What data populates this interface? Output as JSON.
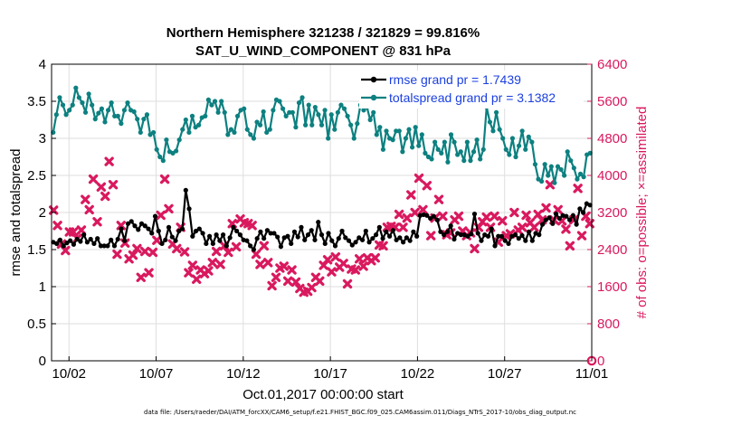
{
  "chart_data": {
    "type": "line",
    "title_line1": "Northern Hemisphere 321238 / 321829 = 99.816%",
    "title_line2": "SAT_U_WIND_COMPONENT @ 831 hPa",
    "xlabel": "Oct.01,2017 00:00:00 start",
    "ylabel_left": "rmse and totalspread",
    "ylabel_right": "# of obs: o=possible; ×=assimilated",
    "footer": "data file: /Users/raeder/DAI/ATM_forcXX/CAM6_setup/f.e21.FHIST_BGC.f09_025.CAM6assim.011/Diags_NTrS_2017-10/obs_diag_output.nc",
    "x_range": [
      0,
      31
    ],
    "x_ticks": [
      {
        "v": 1,
        "label": "10/02"
      },
      {
        "v": 6,
        "label": "10/07"
      },
      {
        "v": 11,
        "label": "10/12"
      },
      {
        "v": 16,
        "label": "10/17"
      },
      {
        "v": 21,
        "label": "10/22"
      },
      {
        "v": 26,
        "label": "10/27"
      },
      {
        "v": 31,
        "label": "11/01"
      }
    ],
    "ylim_left": [
      0,
      4
    ],
    "yticks_left": [
      "0",
      "0.5",
      "1",
      "1.5",
      "2",
      "2.5",
      "3",
      "3.5",
      "4"
    ],
    "ylim_right": [
      0,
      6400
    ],
    "yticks_right": [
      "0",
      "800",
      "1600",
      "2400",
      "3200",
      "4000",
      "4800",
      "5600",
      "6400"
    ],
    "grid": true,
    "legend_position": "top-right",
    "colors": {
      "rmse": "#000000",
      "spread": "#0d8080",
      "obs": "#d9195e",
      "legend_text": "#1a3fe0",
      "right_axis": "#d9195e",
      "grid": "#dedede"
    },
    "series": [
      {
        "name": "rmse grand pr = 1.7439",
        "axis": "left",
        "values": [
          1.6,
          1.58,
          1.63,
          1.55,
          1.59,
          1.62,
          1.57,
          1.64,
          1.61,
          1.7,
          1.6,
          1.64,
          1.58,
          1.65,
          1.55,
          1.55,
          1.55,
          1.63,
          1.55,
          1.64,
          1.78,
          1.62,
          1.85,
          1.88,
          1.82,
          1.77,
          1.85,
          1.82,
          1.78,
          1.72,
          1.95,
          1.75,
          1.58,
          1.63,
          1.8,
          1.67,
          1.62,
          1.75,
          1.78,
          2.3,
          2.05,
          1.68,
          1.75,
          1.78,
          1.72,
          1.58,
          1.68,
          1.58,
          1.7,
          1.62,
          1.7,
          1.55,
          1.66,
          1.8,
          1.75,
          1.7,
          1.63,
          1.62,
          1.55,
          1.5,
          1.65,
          1.74,
          1.65,
          1.76,
          1.72,
          1.72,
          1.67,
          1.54,
          1.66,
          1.68,
          1.58,
          1.74,
          1.67,
          1.8,
          1.63,
          1.7,
          1.76,
          1.63,
          1.87,
          1.7,
          1.58,
          1.72,
          1.62,
          1.55,
          1.65,
          1.75,
          1.66,
          1.62,
          1.56,
          1.6,
          1.66,
          1.63,
          1.75,
          1.6,
          1.65,
          1.7,
          1.8,
          1.65,
          1.74,
          1.68,
          1.76,
          1.63,
          1.66,
          1.6,
          1.66,
          1.62,
          1.74,
          1.68,
          1.96,
          1.97,
          1.96,
          1.92,
          1.95,
          1.9,
          1.74,
          1.7,
          1.74,
          1.82,
          1.64,
          1.72,
          1.7,
          1.7,
          1.68,
          1.71,
          1.98,
          1.72,
          1.62,
          1.7,
          1.68,
          1.78,
          1.55,
          1.68,
          1.68,
          1.62,
          1.58,
          1.68,
          1.7,
          1.65,
          1.69,
          1.62,
          1.74,
          1.62,
          1.72,
          1.7,
          1.84,
          1.9,
          1.93,
          1.85,
          1.98,
          1.92,
          1.96,
          1.95,
          1.9,
          1.96,
          1.84,
          2.05,
          2.0,
          2.12,
          2.1
        ]
      },
      {
        "name": "totalspread grand pr = 3.1382",
        "axis": "left",
        "values": [
          3.08,
          3.32,
          3.55,
          3.45,
          3.32,
          3.38,
          3.45,
          3.68,
          3.55,
          3.48,
          3.35,
          3.6,
          3.45,
          3.26,
          3.34,
          3.4,
          3.22,
          3.38,
          3.48,
          3.3,
          3.3,
          3.2,
          3.38,
          3.48,
          3.38,
          3.36,
          3.26,
          3.08,
          3.26,
          3.32,
          3.05,
          3.08,
          2.85,
          2.75,
          2.7,
          2.98,
          2.82,
          2.8,
          2.83,
          2.98,
          3.12,
          3.25,
          3.08,
          3.3,
          3.15,
          3.18,
          3.28,
          3.3,
          3.52,
          3.45,
          3.5,
          3.35,
          3.5,
          3.35,
          3.05,
          3.12,
          3.08,
          3.3,
          3.38,
          3.4,
          3.12,
          3.05,
          3.0,
          3.22,
          3.18,
          3.36,
          3.08,
          3.12,
          3.38,
          3.52,
          3.5,
          3.4,
          3.3,
          3.35,
          3.35,
          3.15,
          3.48,
          3.55,
          3.18,
          3.45,
          3.18,
          3.42,
          3.32,
          3.18,
          3.38,
          3.0,
          3.32,
          3.12,
          3.35,
          3.45,
          3.4,
          3.3,
          3.18,
          3.0,
          3.2,
          3.45,
          3.38,
          3.42,
          3.25,
          3.35,
          3.05,
          3.15,
          2.85,
          3.1,
          3.0,
          2.98,
          3.1,
          3.1,
          2.82,
          3.0,
          3.12,
          2.88,
          3.15,
          2.9,
          3.05,
          2.8,
          2.75,
          2.72,
          2.95,
          2.85,
          2.8,
          2.95,
          2.68,
          3.05,
          2.95,
          2.78,
          2.82,
          2.7,
          2.95,
          2.7,
          2.82,
          2.98,
          2.72,
          2.85,
          3.42,
          3.22,
          3.1,
          3.35,
          3.12,
          3.0,
          2.85,
          2.78,
          3.0,
          2.75,
          2.9,
          3.1,
          2.85,
          3.02,
          2.95,
          2.65,
          2.45,
          2.42,
          2.65,
          2.5,
          2.62,
          2.4,
          2.62,
          2.58,
          2.5,
          2.82,
          2.7,
          2.6,
          2.45,
          2.52,
          2.48,
          2.78,
          2.8
        ]
      },
      {
        "name": "obs assimilated",
        "axis": "right",
        "values": [
          3250,
          2920,
          2520,
          2380,
          2780,
          2780,
          2640,
          2820,
          3480,
          3260,
          3920,
          3000,
          3750,
          3550,
          4300,
          3800,
          2300,
          2920,
          2540,
          2200,
          2280,
          2420,
          1800,
          2360,
          1900,
          2340,
          2600,
          3140,
          3920,
          3280,
          2520,
          2420,
          2880,
          2350,
          1900,
          2060,
          1760,
          1960,
          1880,
          1940,
          2120,
          2360,
          2080,
          2480,
          2340,
          2960,
          2460,
          3060,
          2980,
          2960,
          2920,
          2300,
          2080,
          2480,
          2120,
          1620,
          1800,
          2000,
          2040,
          1720,
          1960,
          1700,
          1560,
          1480,
          1500,
          1580,
          1800,
          1720,
          2060,
          2180,
          1920,
          2240,
          2020,
          2100,
          1660,
          1980,
          1960,
          2200,
          2040,
          2220,
          2160,
          2220,
          2500,
          2480,
          2880,
          2900,
          2880,
          3160,
          2880,
          3080,
          3580,
          3200,
          3940,
          3260,
          3780,
          2700,
          3080,
          3480,
          3120,
          2720,
          2760,
          3040,
          3120,
          2800,
          2700,
          2760,
          2420,
          2880,
          3000,
          3100,
          2880,
          3120,
          2560,
          3020,
          2700,
          2740,
          3200,
          2820,
          2880,
          3140,
          2980,
          2880,
          3160,
          3040,
          3300,
          3800,
          3040,
          3260,
          3020,
          2840,
          2480,
          3040,
          3720,
          2700,
          3120,
          2960
        ]
      }
    ],
    "obs_possible_right": 0
  }
}
